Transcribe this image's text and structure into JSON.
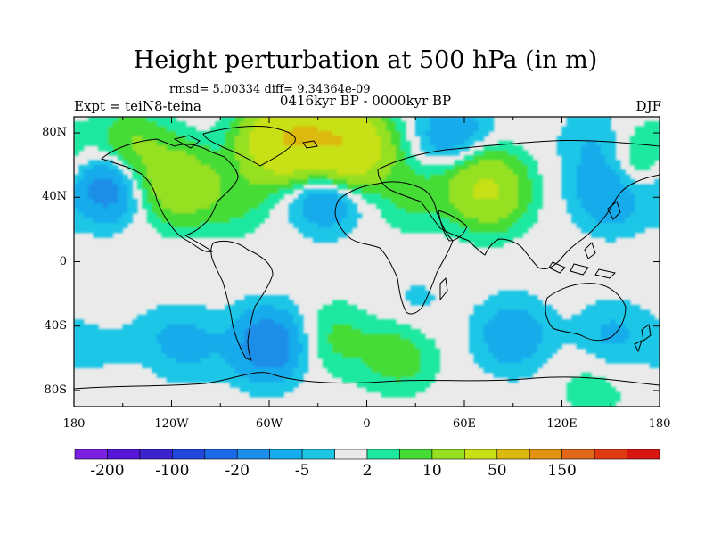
{
  "chart_data": {
    "type": "heatmap",
    "title": "Height perturbation at 500 hPa (in m)",
    "stats": "rmsd= 5.00334  diff= 9.34364e-09",
    "left_label": "Expt = teiN8-teina",
    "center_label": "0416kyr BP - 0000kyr BP",
    "right_label": "DJF",
    "x_ticks": [
      "180",
      "120W",
      "60W",
      "0",
      "60E",
      "120E",
      "180"
    ],
    "y_ticks": [
      "80N",
      "40N",
      "0",
      "40S",
      "80S"
    ],
    "xlim": [
      -180,
      180
    ],
    "ylim": [
      -90,
      90
    ],
    "colorbar": {
      "colors": [
        "#7b1fe0",
        "#5516d8",
        "#3a22cc",
        "#2247dc",
        "#1a6ae8",
        "#1c8ee8",
        "#14acec",
        "#1ec6e6",
        "#eaeaea",
        "#1ee8a0",
        "#44dc34",
        "#96e020",
        "#c8e016",
        "#dcb90e",
        "#e49212",
        "#e06818",
        "#e03a14",
        "#d81612"
      ],
      "labels": [
        "-200",
        "-100",
        "-20",
        "-5",
        "2",
        "10",
        "50",
        "150"
      ]
    },
    "anomalies": [
      {
        "lon": -52,
        "lat": 75,
        "value": 40
      },
      {
        "lon": -10,
        "lat": 70,
        "value": 38
      },
      {
        "lon": -30,
        "lat": 80,
        "value": 24
      },
      {
        "lon": -145,
        "lat": 70,
        "value": 12
      },
      {
        "lon": -160,
        "lat": 48,
        "value": -16
      },
      {
        "lon": -115,
        "lat": 48,
        "value": 18
      },
      {
        "lon": -80,
        "lat": 40,
        "value": 6
      },
      {
        "lon": -25,
        "lat": 44,
        "value": -14
      },
      {
        "lon": 28,
        "lat": 42,
        "value": 6
      },
      {
        "lon": 75,
        "lat": 44,
        "value": 20
      },
      {
        "lon": 55,
        "lat": 74,
        "value": -14
      },
      {
        "lon": 150,
        "lat": 42,
        "value": -10
      },
      {
        "lon": 170,
        "lat": 62,
        "value": 8
      },
      {
        "lon": 60,
        "lat": 60,
        "value": 8
      },
      {
        "lon": 140,
        "lat": 74,
        "value": -5
      },
      {
        "lon": -150,
        "lat": -26,
        "value": 4
      },
      {
        "lon": -60,
        "lat": -52,
        "value": -16
      },
      {
        "lon": -110,
        "lat": -52,
        "value": -6
      },
      {
        "lon": -20,
        "lat": -48,
        "value": 6
      },
      {
        "lon": 20,
        "lat": -58,
        "value": 8
      },
      {
        "lon": 30,
        "lat": -28,
        "value": -3
      },
      {
        "lon": 90,
        "lat": -46,
        "value": -9
      },
      {
        "lon": 150,
        "lat": -47,
        "value": -6
      },
      {
        "lon": 140,
        "lat": -78,
        "value": 4
      },
      {
        "lon": -140,
        "lat": -38,
        "value": -4
      },
      {
        "lon": -170,
        "lat": -50,
        "value": -3
      }
    ]
  }
}
